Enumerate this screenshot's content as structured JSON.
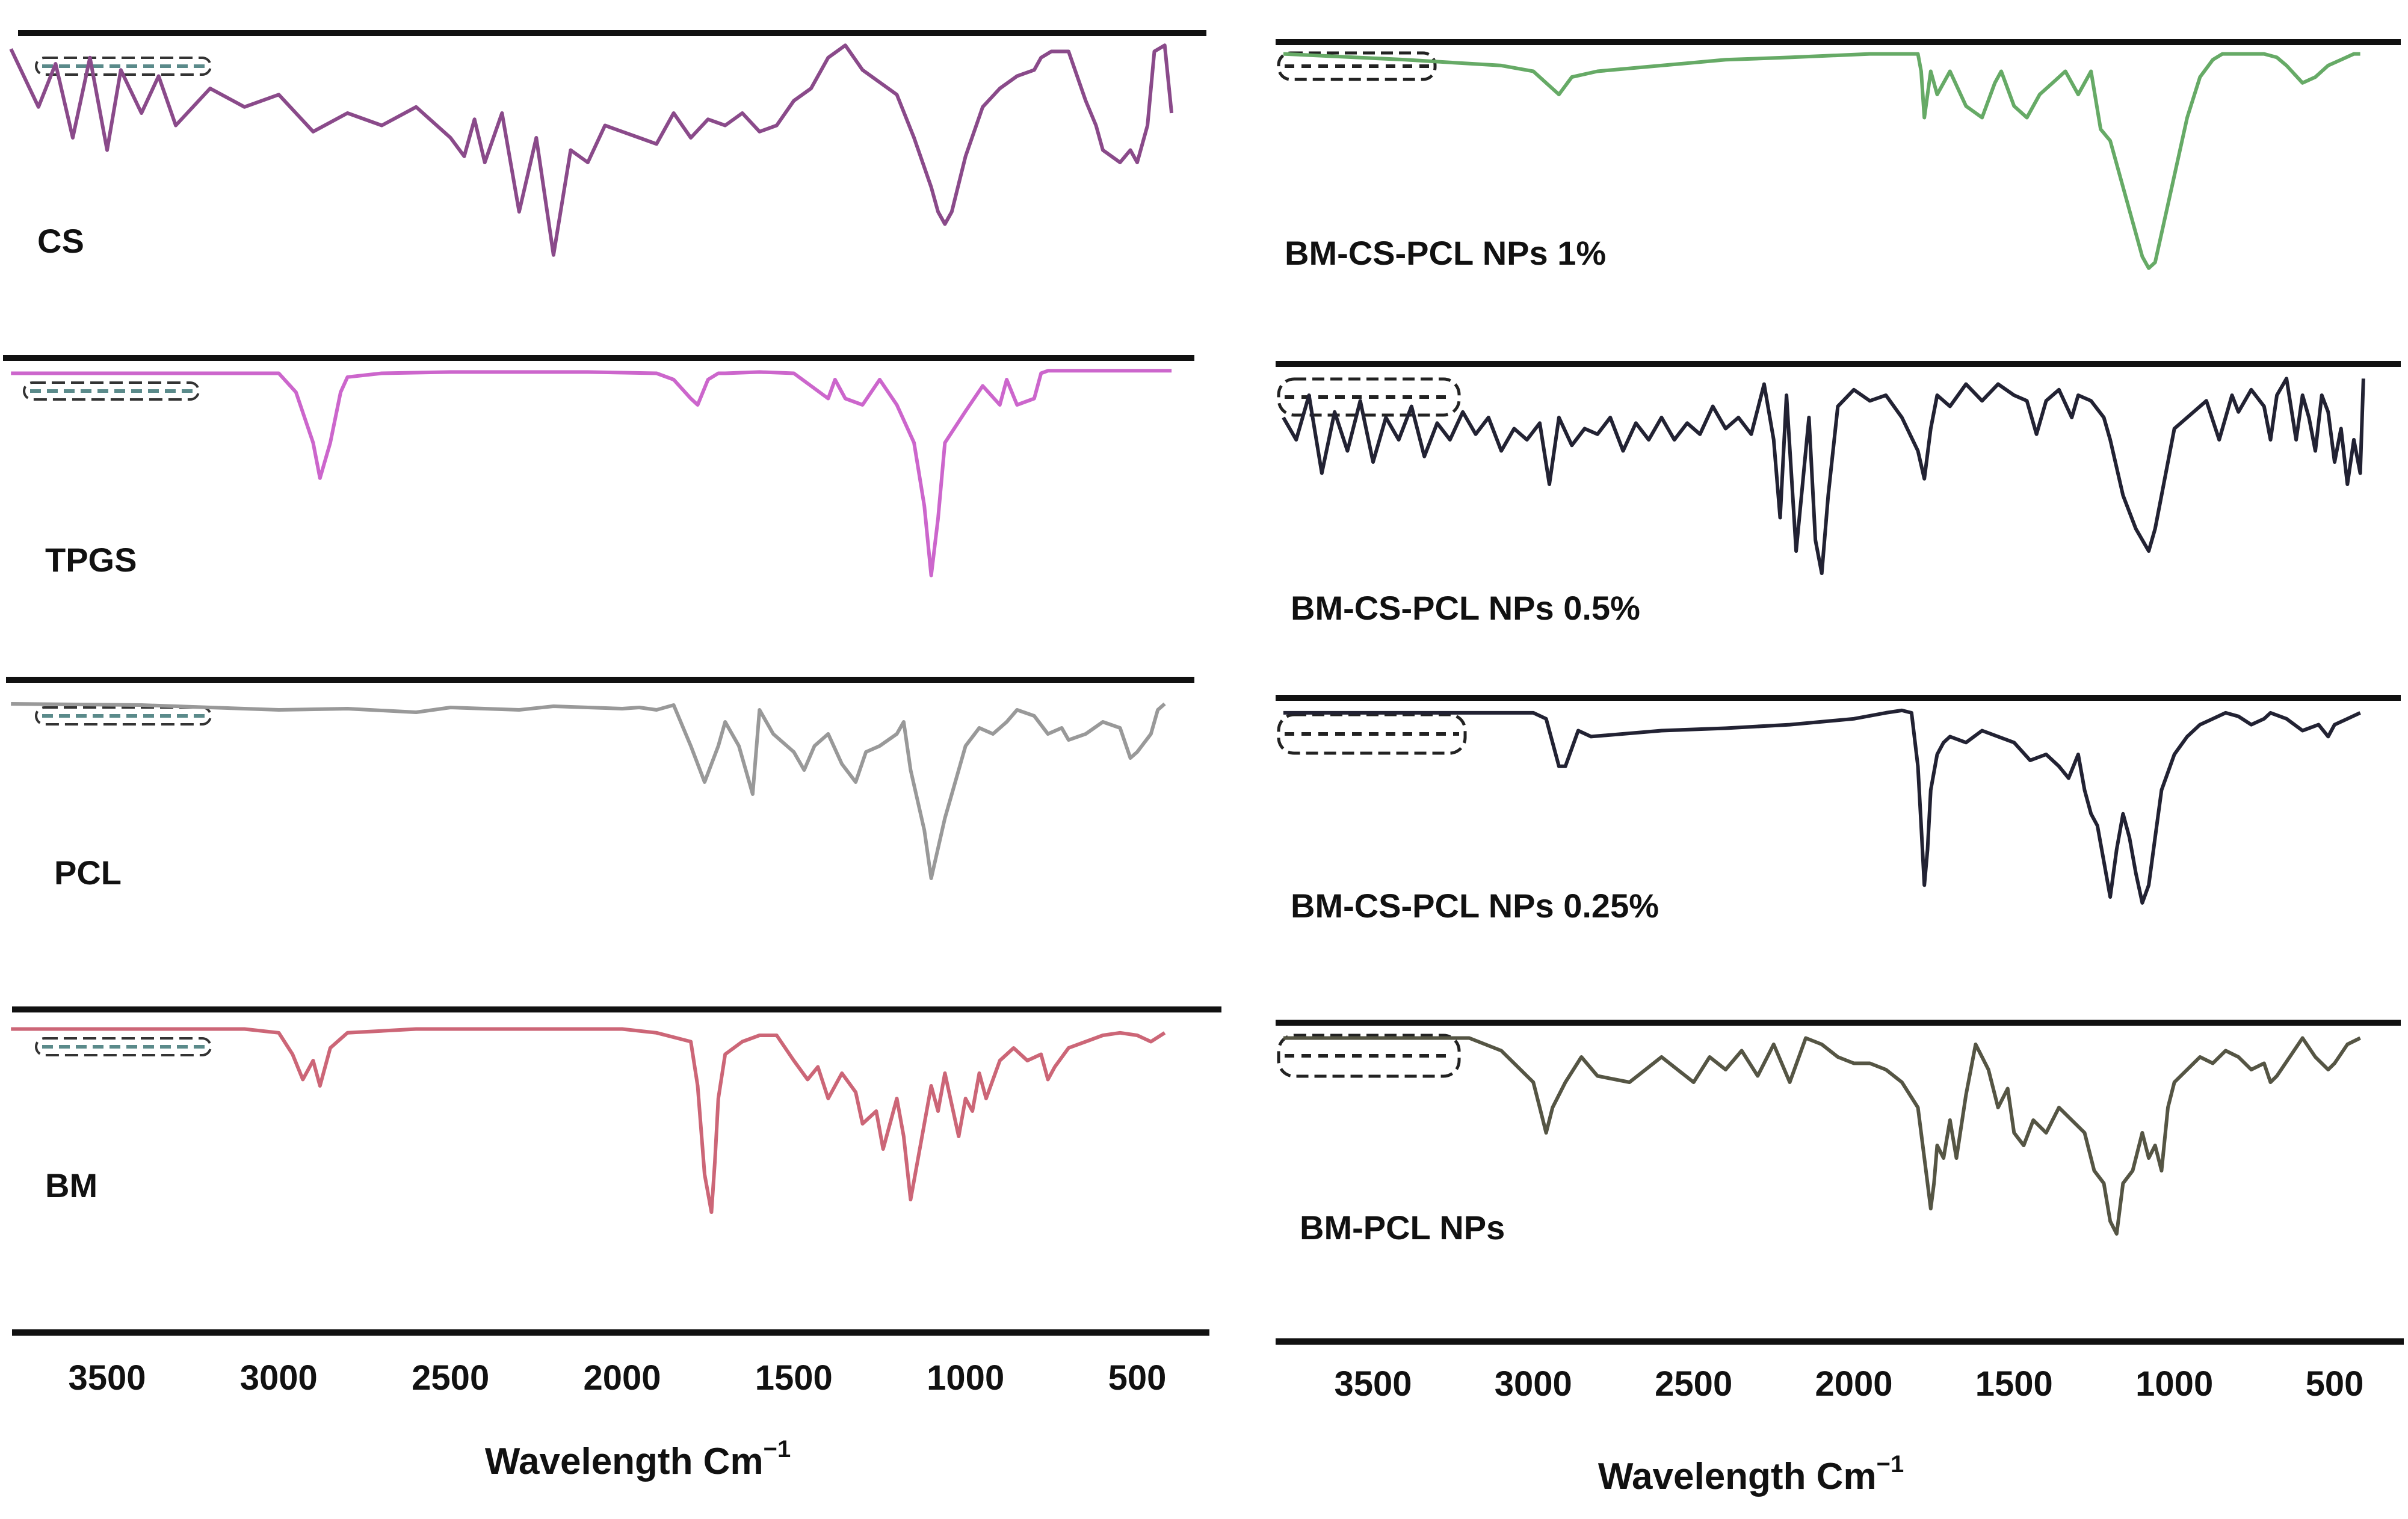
{
  "chart_data": [
    {
      "type": "line",
      "xlabel": "Wavelength Cm",
      "xlabel_superscript": "−1",
      "x_ticks": [
        3500,
        3000,
        2500,
        2000,
        1500,
        1000,
        500
      ],
      "x_tick_labels": [
        "3500",
        "3000",
        "2500",
        "2000",
        "1500",
        "1000",
        "500"
      ],
      "xlim": [
        3800,
        400
      ],
      "x_reversed": true,
      "grid": false,
      "series": [
        {
          "name": "CS",
          "color": "#8a4a8a",
          "x": [
            3780,
            3700,
            3650,
            3600,
            3550,
            3500,
            3460,
            3400,
            3350,
            3300,
            3200,
            3100,
            3000,
            2900,
            2800,
            2700,
            2600,
            2500,
            2460,
            2430,
            2400,
            2350,
            2300,
            2250,
            2200,
            2150,
            2100,
            2050,
            2000,
            1950,
            1900,
            1850,
            1800,
            1750,
            1700,
            1650,
            1600,
            1550,
            1500,
            1450,
            1400,
            1350,
            1300,
            1250,
            1200,
            1150,
            1100,
            1080,
            1060,
            1040,
            1000,
            950,
            900,
            850,
            800,
            780,
            750,
            700,
            650,
            620,
            600,
            550,
            520,
            500,
            470,
            450,
            420,
            400
          ],
          "y": [
            8,
            55,
            20,
            80,
            15,
            90,
            25,
            60,
            30,
            70,
            40,
            55,
            45,
            75,
            60,
            70,
            55,
            80,
            95,
            65,
            100,
            60,
            140,
            80,
            175,
            90,
            100,
            70,
            75,
            80,
            85,
            60,
            80,
            65,
            70,
            60,
            75,
            70,
            50,
            40,
            15,
            5,
            25,
            35,
            45,
            80,
            120,
            140,
            150,
            140,
            95,
            55,
            40,
            30,
            25,
            15,
            10,
            10,
            50,
            70,
            90,
            100,
            90,
            100,
            70,
            10,
            5,
            60
          ]
        },
        {
          "name": "TPGS",
          "color": "#cc66cc",
          "x": [
            3780,
            3400,
            3000,
            2950,
            2900,
            2880,
            2850,
            2820,
            2800,
            2700,
            2500,
            2300,
            2100,
            1900,
            1850,
            1800,
            1780,
            1750,
            1720,
            1700,
            1600,
            1500,
            1450,
            1400,
            1380,
            1350,
            1300,
            1250,
            1200,
            1150,
            1120,
            1100,
            1080,
            1060,
            1000,
            950,
            900,
            880,
            850,
            800,
            780,
            760,
            400
          ],
          "y": [
            5,
            5,
            5,
            20,
            60,
            88,
            60,
            20,
            8,
            5,
            4,
            4,
            4,
            5,
            10,
            25,
            30,
            10,
            5,
            5,
            4,
            5,
            15,
            25,
            10,
            25,
            30,
            10,
            30,
            60,
            110,
            165,
            120,
            60,
            35,
            15,
            30,
            10,
            30,
            25,
            5,
            3,
            3
          ]
        },
        {
          "name": "PCL",
          "color": "#999999",
          "x": [
            3780,
            3400,
            3200,
            3000,
            2800,
            2600,
            2500,
            2300,
            2200,
            2000,
            1950,
            1900,
            1850,
            1800,
            1760,
            1720,
            1700,
            1660,
            1620,
            1600,
            1560,
            1500,
            1470,
            1440,
            1400,
            1360,
            1320,
            1290,
            1250,
            1200,
            1180,
            1160,
            1120,
            1100,
            1060,
            1020,
            1000,
            960,
            920,
            880,
            850,
            800,
            760,
            720,
            700,
            650,
            600,
            550,
            520,
            500,
            460,
            440,
            420
          ],
          "y": [
            5,
            6,
            8,
            10,
            9,
            12,
            8,
            10,
            7,
            9,
            8,
            10,
            6,
            40,
            70,
            40,
            20,
            40,
            80,
            10,
            30,
            45,
            60,
            40,
            30,
            55,
            70,
            45,
            40,
            30,
            20,
            60,
            110,
            150,
            100,
            60,
            40,
            25,
            30,
            20,
            10,
            15,
            30,
            25,
            35,
            30,
            20,
            25,
            50,
            45,
            30,
            10,
            5
          ]
        },
        {
          "name": "BM",
          "color": "#cc6677",
          "x": [
            3780,
            3400,
            3100,
            3000,
            2960,
            2930,
            2900,
            2880,
            2850,
            2800,
            2600,
            2400,
            2200,
            2000,
            1900,
            1800,
            1780,
            1760,
            1740,
            1730,
            1720,
            1700,
            1650,
            1600,
            1550,
            1500,
            1460,
            1430,
            1400,
            1360,
            1320,
            1300,
            1260,
            1240,
            1200,
            1180,
            1160,
            1140,
            1120,
            1100,
            1080,
            1060,
            1020,
            1000,
            980,
            960,
            940,
            900,
            860,
            820,
            780,
            760,
            740,
            700,
            650,
            600,
            550,
            500,
            460,
            420
          ],
          "y": [
            5,
            5,
            5,
            8,
            25,
            45,
            30,
            50,
            20,
            8,
            5,
            5,
            5,
            5,
            8,
            15,
            50,
            120,
            150,
            110,
            60,
            25,
            15,
            10,
            10,
            30,
            45,
            35,
            60,
            40,
            55,
            80,
            70,
            100,
            60,
            90,
            140,
            110,
            80,
            50,
            70,
            40,
            90,
            60,
            70,
            40,
            60,
            30,
            20,
            30,
            25,
            45,
            35,
            20,
            15,
            10,
            8,
            10,
            15,
            8
          ]
        }
      ]
    },
    {
      "type": "line",
      "xlabel": "Wavelength Cm",
      "xlabel_superscript": "−1",
      "x_ticks": [
        3500,
        3000,
        2500,
        2000,
        1500,
        1000,
        500
      ],
      "x_tick_labels": [
        "3500",
        "3000",
        "2500",
        "2000",
        "1500",
        "1000",
        "500"
      ],
      "xlim": [
        3800,
        400
      ],
      "x_reversed": true,
      "grid": false,
      "series": [
        {
          "name": "BM-CS-PCL NPs 1%",
          "color": "#66aa66",
          "x": [
            3780,
            3400,
            3100,
            3000,
            2960,
            2920,
            2880,
            2800,
            2600,
            2400,
            2200,
            1950,
            1800,
            1790,
            1780,
            1770,
            1760,
            1740,
            1700,
            1650,
            1600,
            1560,
            1540,
            1500,
            1460,
            1420,
            1380,
            1340,
            1300,
            1260,
            1230,
            1200,
            1160,
            1130,
            1100,
            1080,
            1060,
            1040,
            1000,
            960,
            920,
            880,
            850,
            800,
            760,
            720,
            680,
            650,
            600,
            560,
            520,
            480,
            440,
            420
          ],
          "y": [
            5,
            10,
            15,
            20,
            30,
            40,
            25,
            20,
            15,
            10,
            8,
            5,
            5,
            20,
            60,
            40,
            20,
            40,
            20,
            50,
            60,
            30,
            20,
            50,
            60,
            40,
            30,
            20,
            40,
            20,
            70,
            80,
            120,
            150,
            180,
            190,
            185,
            160,
            110,
            60,
            25,
            10,
            5,
            5,
            5,
            5,
            8,
            15,
            30,
            25,
            15,
            10,
            5,
            5
          ]
        },
        {
          "name": "BM-CS-PCL NPs 0.5%",
          "color": "#222233",
          "x": [
            3780,
            3740,
            3700,
            3660,
            3620,
            3580,
            3540,
            3500,
            3460,
            3420,
            3380,
            3340,
            3300,
            3260,
            3220,
            3180,
            3140,
            3100,
            3060,
            3020,
            2980,
            2950,
            2920,
            2880,
            2840,
            2800,
            2760,
            2720,
            2680,
            2640,
            2600,
            2560,
            2520,
            2480,
            2440,
            2400,
            2360,
            2320,
            2280,
            2250,
            2230,
            2210,
            2180,
            2160,
            2140,
            2120,
            2100,
            2080,
            2050,
            2000,
            1950,
            1900,
            1850,
            1800,
            1780,
            1760,
            1740,
            1700,
            1650,
            1600,
            1550,
            1500,
            1460,
            1430,
            1400,
            1360,
            1320,
            1300,
            1260,
            1220,
            1200,
            1160,
            1120,
            1100,
            1080,
            1060,
            1040,
            1000,
            960,
            900,
            860,
            820,
            800,
            760,
            720,
            700,
            680,
            650,
            620,
            600,
            580,
            560,
            540,
            520,
            500,
            480,
            460,
            440,
            420,
            410
          ],
          "y": [
            40,
            60,
            20,
            90,
            35,
            70,
            25,
            80,
            40,
            60,
            30,
            75,
            45,
            60,
            35,
            55,
            40,
            70,
            50,
            60,
            45,
            100,
            40,
            65,
            50,
            55,
            40,
            70,
            45,
            60,
            40,
            60,
            45,
            55,
            30,
            50,
            40,
            55,
            10,
            60,
            130,
            20,
            160,
            100,
            40,
            150,
            180,
            110,
            30,
            15,
            25,
            20,
            40,
            70,
            95,
            50,
            20,
            30,
            10,
            25,
            10,
            20,
            25,
            55,
            25,
            15,
            40,
            20,
            25,
            40,
            60,
            110,
            140,
            150,
            160,
            140,
            110,
            50,
            40,
            25,
            60,
            20,
            35,
            15,
            30,
            60,
            20,
            5,
            60,
            20,
            40,
            70,
            20,
            35,
            80,
            50,
            100,
            60,
            90,
            5
          ]
        },
        {
          "name": "BM-CS-PCL NPs 0.25%",
          "color": "#222233",
          "x": [
            3780,
            3400,
            3100,
            3000,
            2960,
            2940,
            2920,
            2900,
            2880,
            2860,
            2820,
            2600,
            2400,
            2200,
            2000,
            1900,
            1850,
            1820,
            1800,
            1790,
            1780,
            1770,
            1760,
            1740,
            1720,
            1700,
            1650,
            1600,
            1550,
            1500,
            1450,
            1400,
            1360,
            1330,
            1300,
            1280,
            1260,
            1240,
            1220,
            1200,
            1180,
            1160,
            1140,
            1120,
            1100,
            1080,
            1060,
            1040,
            1000,
            960,
            920,
            880,
            840,
            800,
            760,
            720,
            700,
            650,
            600,
            550,
            520,
            500,
            460,
            420
          ],
          "y": [
            5,
            5,
            5,
            5,
            10,
            30,
            50,
            50,
            35,
            20,
            25,
            20,
            18,
            15,
            10,
            5,
            3,
            5,
            50,
            100,
            150,
            120,
            70,
            40,
            30,
            25,
            30,
            20,
            25,
            30,
            45,
            40,
            50,
            60,
            40,
            70,
            90,
            100,
            130,
            160,
            120,
            90,
            110,
            140,
            165,
            150,
            110,
            70,
            40,
            25,
            15,
            10,
            5,
            8,
            15,
            10,
            5,
            10,
            20,
            15,
            25,
            15,
            10,
            5
          ]
        },
        {
          "name": "BM-PCL NPs",
          "color": "#555544",
          "x": [
            3780,
            3400,
            3200,
            3100,
            3000,
            2980,
            2960,
            2940,
            2900,
            2850,
            2800,
            2700,
            2600,
            2550,
            2500,
            2450,
            2400,
            2350,
            2300,
            2250,
            2200,
            2150,
            2100,
            2050,
            2000,
            1950,
            1900,
            1850,
            1800,
            1780,
            1760,
            1750,
            1740,
            1720,
            1700,
            1680,
            1650,
            1620,
            1600,
            1580,
            1550,
            1520,
            1500,
            1470,
            1440,
            1400,
            1360,
            1320,
            1280,
            1250,
            1220,
            1200,
            1180,
            1160,
            1130,
            1100,
            1080,
            1060,
            1040,
            1020,
            1000,
            960,
            920,
            880,
            840,
            800,
            760,
            720,
            700,
            680,
            640,
            600,
            560,
            520,
            500,
            460,
            420
          ],
          "y": [
            5,
            5,
            5,
            15,
            40,
            60,
            80,
            60,
            40,
            20,
            35,
            40,
            20,
            30,
            40,
            20,
            30,
            15,
            35,
            10,
            40,
            5,
            10,
            20,
            25,
            25,
            30,
            40,
            60,
            100,
            140,
            120,
            90,
            100,
            70,
            100,
            50,
            10,
            20,
            30,
            60,
            45,
            80,
            90,
            70,
            80,
            60,
            70,
            80,
            110,
            120,
            150,
            160,
            120,
            110,
            80,
            100,
            90,
            110,
            60,
            40,
            30,
            20,
            25,
            15,
            20,
            30,
            25,
            40,
            35,
            20,
            5,
            20,
            30,
            25,
            10,
            5
          ]
        }
      ]
    }
  ]
}
